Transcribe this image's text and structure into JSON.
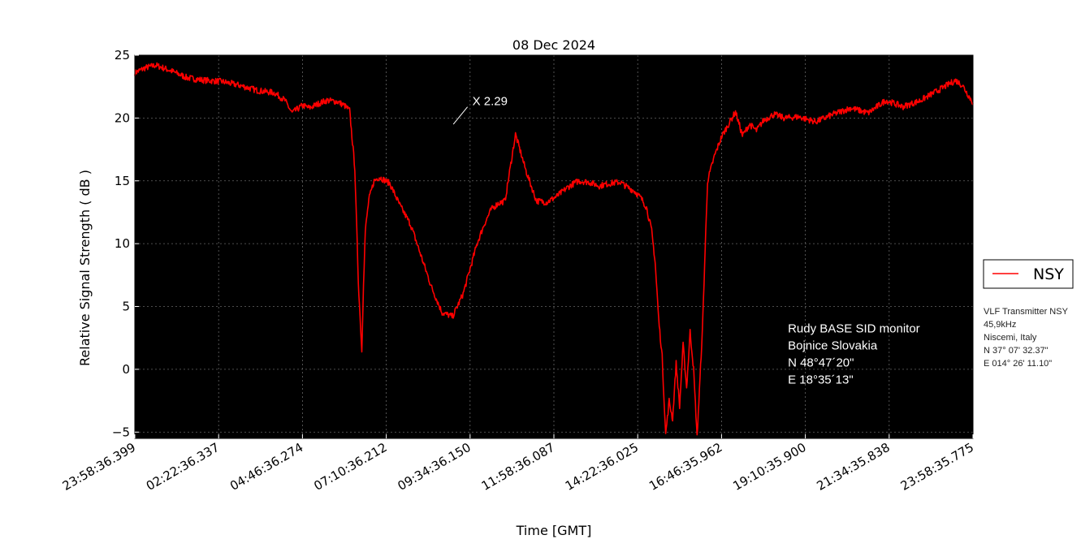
{
  "chart_data": {
    "type": "line",
    "title": "08 Dec 2024",
    "xlabel": "Time [GMT]",
    "ylabel": "Relative Signal Strength ( dB )",
    "ylim": [
      -5.5,
      25
    ],
    "yticks": [
      25,
      20,
      15,
      10,
      5,
      0,
      -5
    ],
    "ytick_labels": [
      "25",
      "20",
      "15",
      "10",
      "5",
      "0",
      "−5"
    ],
    "xtick_labels": [
      "23:58:36.399",
      "02:22:36.337",
      "04:46:36.274",
      "07:10:36.212",
      "09:34:36.150",
      "11:58:36.087",
      "14:22:36.025",
      "16:46:35.962",
      "19:10:35.900",
      "21:34:35.838",
      "23:58:35.775"
    ],
    "x_unit": "hours since 23:58:36 GMT",
    "grid": true,
    "background": "#000000",
    "legend_position": "right",
    "series": [
      {
        "name": "NSY",
        "color": "#ff0000",
        "x": [
          0,
          0.3,
          0.6,
          1.0,
          1.5,
          2.0,
          2.5,
          3.0,
          3.5,
          4.0,
          4.3,
          4.5,
          4.8,
          5.0,
          5.3,
          5.5,
          5.8,
          6.0,
          6.15,
          6.3,
          6.4,
          6.5,
          6.55,
          6.6,
          6.7,
          6.85,
          7.0,
          7.3,
          7.6,
          7.9,
          8.2,
          8.5,
          8.8,
          9.1,
          9.4,
          9.6,
          9.8,
          10.0,
          10.2,
          10.4,
          10.6,
          10.9,
          11.2,
          11.5,
          11.8,
          12.1,
          12.4,
          12.7,
          13.0,
          13.3,
          13.6,
          13.9,
          14.1,
          14.3,
          14.5,
          14.65,
          14.8,
          14.9,
          15.0,
          15.1,
          15.2,
          15.3,
          15.4,
          15.5,
          15.6,
          15.7,
          15.8,
          15.9,
          16.0,
          16.1,
          16.25,
          16.4,
          16.6,
          16.8,
          17.0,
          17.2,
          17.4,
          17.6,
          17.8,
          18.0,
          18.3,
          18.6,
          19.0,
          19.5,
          20.0,
          20.5,
          21.0,
          21.5,
          22.0,
          22.5,
          23.0,
          23.5,
          23.7,
          24.0
        ],
        "values": [
          23.6,
          24.0,
          24.2,
          23.8,
          23.2,
          23.0,
          22.9,
          22.6,
          22.2,
          22.0,
          21.4,
          20.4,
          21.0,
          20.8,
          21.2,
          21.4,
          21.3,
          21.0,
          20.6,
          16.0,
          7.0,
          1.4,
          7.0,
          11.0,
          13.5,
          15.0,
          15.3,
          14.8,
          13.0,
          11.5,
          9.0,
          6.5,
          4.5,
          4.2,
          6.0,
          8.0,
          10.0,
          11.5,
          12.7,
          13.2,
          13.4,
          18.7,
          15.8,
          13.4,
          13.3,
          13.8,
          14.5,
          15.0,
          14.9,
          14.6,
          14.8,
          14.9,
          14.5,
          14.2,
          13.6,
          12.9,
          11.0,
          8.5,
          4.0,
          1.0,
          -5.2,
          -2.5,
          -4.0,
          0.5,
          -3.0,
          2.0,
          -1.5,
          3.0,
          0.0,
          -5.4,
          3.0,
          15.0,
          17.0,
          18.5,
          19.5,
          20.5,
          18.6,
          19.5,
          19.0,
          19.8,
          20.3,
          20.0,
          20.1,
          19.7,
          20.3,
          20.8,
          20.4,
          21.4,
          20.9,
          21.4,
          22.2,
          23.0,
          22.6,
          21.2
        ]
      }
    ],
    "annotations": [
      {
        "text": "X 2.29",
        "x": 9.2,
        "y": 21.4,
        "point_x": 9.12,
        "point_y": 19.5
      },
      {
        "lines": [
          "Rudy BASE SID monitor",
          "Bojnice Slovakia",
          "N 48°47´20\"",
          "E 18°35´13\""
        ],
        "x": 18.7,
        "y": 3.2
      }
    ]
  },
  "transmitter_info": [
    "VLF Transmitter NSY",
    "45,9kHz",
    "Niscemi, Italy",
    "N 37° 07' 32.37\"",
    "E 014° 26' 11.10\""
  ]
}
